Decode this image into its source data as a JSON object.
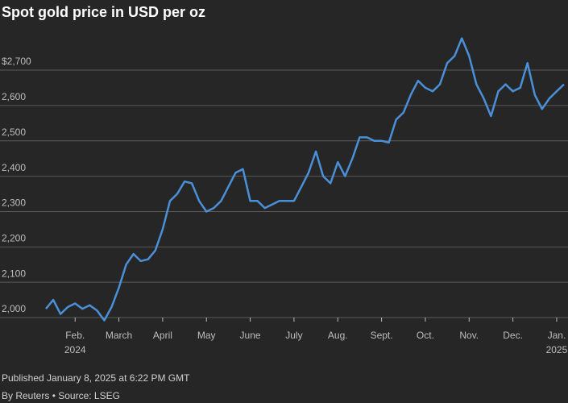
{
  "chart_data": {
    "type": "line",
    "title": "Spot gold price in USD per oz",
    "published": "Published January 8, 2025 at 6:22 PM GMT",
    "source": "By Reuters • Source: LSEG",
    "categories": [
      null,
      null,
      null,
      null,
      "Feb. 2024",
      null,
      null,
      null,
      null,
      null,
      "March",
      null,
      null,
      null,
      null,
      null,
      "April",
      null,
      null,
      null,
      null,
      null,
      "May",
      null,
      null,
      null,
      null,
      null,
      "June",
      null,
      null,
      null,
      null,
      null,
      "July",
      null,
      null,
      null,
      null,
      null,
      "Aug.",
      null,
      null,
      null,
      null,
      null,
      "Sept.",
      null,
      null,
      null,
      null,
      null,
      "Oct.",
      null,
      null,
      null,
      null,
      null,
      "Nov.",
      null,
      null,
      null,
      null,
      null,
      "Dec.",
      null,
      null,
      null,
      null,
      null,
      "Jan. 2025",
      null
    ],
    "series": [
      {
        "name": "Spot gold",
        "color": "#4a90d9",
        "values": [
          2025,
          2050,
          2010,
          2030,
          2040,
          2025,
          2035,
          2020,
          1992,
          2030,
          2085,
          2150,
          2180,
          2160,
          2165,
          2190,
          2250,
          2330,
          2350,
          2385,
          2380,
          2330,
          2300,
          2310,
          2330,
          2370,
          2410,
          2420,
          2330,
          2330,
          2310,
          2320,
          2330,
          2330,
          2330,
          2370,
          2410,
          2470,
          2400,
          2380,
          2440,
          2400,
          2450,
          2510,
          2510,
          2500,
          2500,
          2495,
          2560,
          2580,
          2630,
          2670,
          2650,
          2640,
          2660,
          2720,
          2740,
          2790,
          2740,
          2660,
          2620,
          2570,
          2640,
          2660,
          2640,
          2650,
          2720,
          2630,
          2590,
          2620,
          2640,
          2660
        ]
      }
    ],
    "ylim": [
      1975,
      2830
    ],
    "yticks": [
      {
        "value": 2000,
        "label": "2,000"
      },
      {
        "value": 2100,
        "label": "2,100"
      },
      {
        "value": 2200,
        "label": "2,200"
      },
      {
        "value": 2300,
        "label": "2,300"
      },
      {
        "value": 2400,
        "label": "2,400"
      },
      {
        "value": 2500,
        "label": "2,500"
      },
      {
        "value": 2600,
        "label": "2,600"
      },
      {
        "value": 2700,
        "label": "$2,700"
      }
    ],
    "grid": true
  }
}
